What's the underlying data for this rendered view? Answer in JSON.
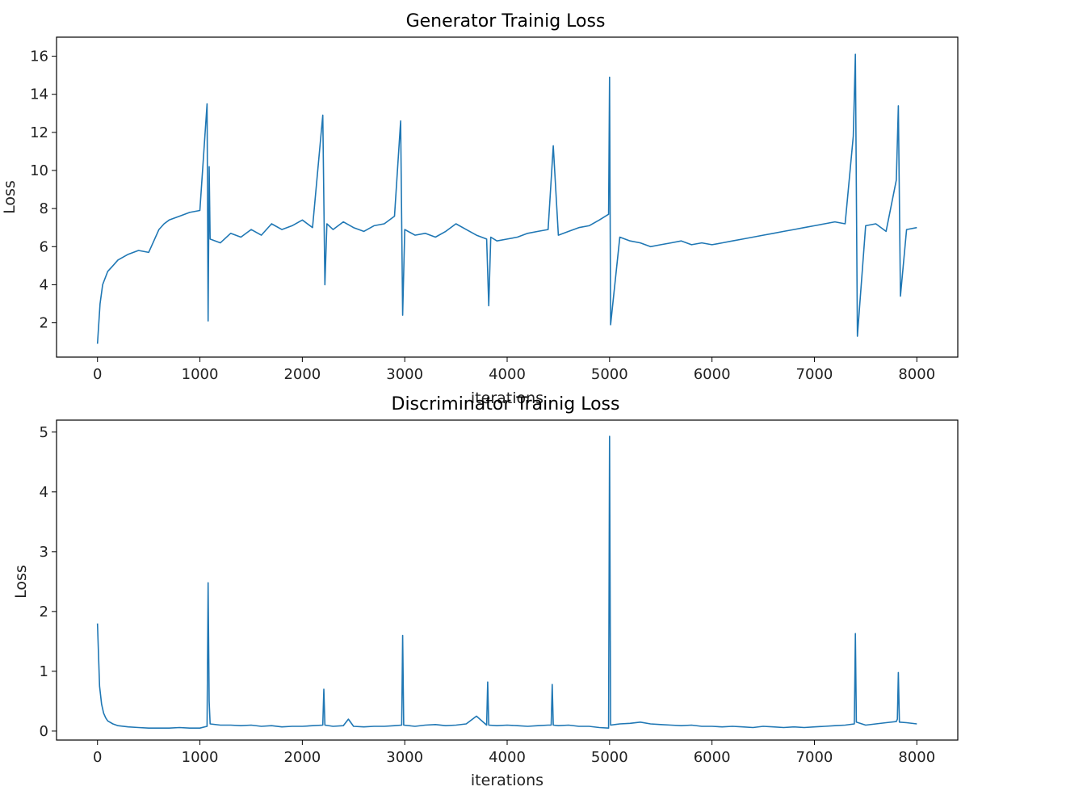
{
  "chart_data": [
    {
      "type": "line",
      "title": "Generator Trainig Loss",
      "xlabel": "iterations",
      "ylabel": "Loss",
      "xlim": [
        -400,
        8400
      ],
      "ylim": [
        0.2,
        17.0
      ],
      "xticks": [
        0,
        1000,
        2000,
        3000,
        4000,
        5000,
        6000,
        7000,
        8000
      ],
      "yticks": [
        2,
        4,
        6,
        8,
        10,
        12,
        14,
        16
      ],
      "grid": false,
      "color": "#1f77b4",
      "series": [
        {
          "x": [
            0,
            25,
            50,
            100,
            150,
            200,
            300,
            400,
            500,
            550,
            600,
            650,
            700,
            800,
            900,
            1000,
            1070,
            1080,
            1090,
            1100,
            1200,
            1300,
            1400,
            1500,
            1600,
            1700,
            1800,
            1900,
            2000,
            2100,
            2200,
            2220,
            2240,
            2300,
            2400,
            2500,
            2600,
            2700,
            2800,
            2900,
            2960,
            2980,
            3000,
            3100,
            3200,
            3300,
            3400,
            3500,
            3600,
            3700,
            3800,
            3820,
            3840,
            3900,
            4000,
            4100,
            4200,
            4300,
            4400,
            4450,
            4500,
            4600,
            4700,
            4800,
            4900,
            4990,
            5000,
            5010,
            5100,
            5200,
            5300,
            5400,
            5500,
            5600,
            5700,
            5800,
            5900,
            6000,
            6100,
            6200,
            6300,
            6400,
            6500,
            6600,
            6700,
            6800,
            6900,
            7000,
            7100,
            7200,
            7300,
            7380,
            7400,
            7420,
            7500,
            7600,
            7700,
            7800,
            7820,
            7840,
            7900,
            8000
          ],
          "y": [
            0.9,
            3.0,
            4.0,
            4.7,
            5.0,
            5.3,
            5.6,
            5.8,
            5.7,
            6.3,
            6.9,
            7.2,
            7.4,
            7.6,
            7.8,
            7.9,
            13.5,
            2.1,
            10.2,
            6.4,
            6.2,
            6.7,
            6.5,
            6.9,
            6.6,
            7.2,
            6.9,
            7.1,
            7.4,
            7.0,
            12.9,
            4.0,
            7.2,
            6.9,
            7.3,
            7.0,
            6.8,
            7.1,
            7.2,
            7.6,
            12.6,
            2.4,
            6.9,
            6.6,
            6.7,
            6.5,
            6.8,
            7.2,
            6.9,
            6.6,
            6.4,
            2.9,
            6.5,
            6.3,
            6.4,
            6.5,
            6.7,
            6.8,
            6.9,
            11.3,
            6.6,
            6.8,
            7.0,
            7.1,
            7.4,
            7.7,
            14.9,
            1.9,
            6.5,
            6.3,
            6.2,
            6.0,
            6.1,
            6.2,
            6.3,
            6.1,
            6.2,
            6.1,
            6.2,
            6.3,
            6.4,
            6.5,
            6.6,
            6.7,
            6.8,
            6.9,
            7.0,
            7.1,
            7.2,
            7.3,
            7.2,
            11.8,
            16.1,
            1.3,
            7.1,
            7.2,
            6.8,
            9.5,
            13.4,
            3.4,
            6.9,
            7.0
          ]
        }
      ]
    },
    {
      "type": "line",
      "title": "Discriminator Trainig Loss",
      "xlabel": "iterations",
      "ylabel": "Loss",
      "xlim": [
        -400,
        8400
      ],
      "ylim": [
        -0.15,
        5.2
      ],
      "xticks": [
        0,
        1000,
        2000,
        3000,
        4000,
        5000,
        6000,
        7000,
        8000
      ],
      "yticks": [
        0,
        1,
        2,
        3,
        4,
        5
      ],
      "grid": false,
      "color": "#1f77b4",
      "series": [
        {
          "x": [
            0,
            20,
            40,
            60,
            80,
            100,
            150,
            200,
            300,
            400,
            500,
            600,
            700,
            800,
            900,
            1000,
            1070,
            1080,
            1090,
            1100,
            1200,
            1300,
            1400,
            1500,
            1600,
            1700,
            1800,
            1900,
            2000,
            2100,
            2200,
            2210,
            2220,
            2300,
            2400,
            2450,
            2500,
            2600,
            2700,
            2800,
            2900,
            2970,
            2980,
            2990,
            3100,
            3200,
            3300,
            3400,
            3500,
            3600,
            3700,
            3800,
            3810,
            3820,
            3900,
            4000,
            4100,
            4200,
            4300,
            4400,
            4430,
            4440,
            4450,
            4500,
            4600,
            4700,
            4800,
            4900,
            4990,
            5000,
            5010,
            5100,
            5200,
            5300,
            5400,
            5500,
            5600,
            5700,
            5800,
            5900,
            6000,
            6100,
            6200,
            6300,
            6400,
            6500,
            6600,
            6700,
            6800,
            6900,
            7000,
            7100,
            7200,
            7300,
            7390,
            7400,
            7410,
            7500,
            7600,
            7700,
            7800,
            7810,
            7820,
            7830,
            7900,
            8000
          ],
          "y": [
            1.8,
            0.75,
            0.45,
            0.3,
            0.22,
            0.17,
            0.12,
            0.09,
            0.07,
            0.06,
            0.05,
            0.05,
            0.05,
            0.06,
            0.05,
            0.05,
            0.08,
            2.48,
            0.5,
            0.12,
            0.1,
            0.1,
            0.09,
            0.1,
            0.08,
            0.09,
            0.07,
            0.08,
            0.08,
            0.09,
            0.1,
            0.7,
            0.1,
            0.08,
            0.09,
            0.2,
            0.08,
            0.07,
            0.08,
            0.08,
            0.09,
            0.1,
            1.6,
            0.1,
            0.08,
            0.1,
            0.11,
            0.09,
            0.1,
            0.12,
            0.25,
            0.1,
            0.82,
            0.1,
            0.09,
            0.1,
            0.09,
            0.08,
            0.09,
            0.1,
            0.1,
            0.78,
            0.1,
            0.09,
            0.1,
            0.08,
            0.08,
            0.06,
            0.05,
            4.93,
            0.1,
            0.12,
            0.13,
            0.15,
            0.12,
            0.11,
            0.1,
            0.09,
            0.1,
            0.08,
            0.08,
            0.07,
            0.08,
            0.07,
            0.06,
            0.08,
            0.07,
            0.06,
            0.07,
            0.06,
            0.07,
            0.08,
            0.09,
            0.1,
            0.12,
            1.63,
            0.15,
            0.1,
            0.12,
            0.14,
            0.16,
            0.2,
            0.98,
            0.15,
            0.14,
            0.12
          ]
        }
      ]
    }
  ]
}
